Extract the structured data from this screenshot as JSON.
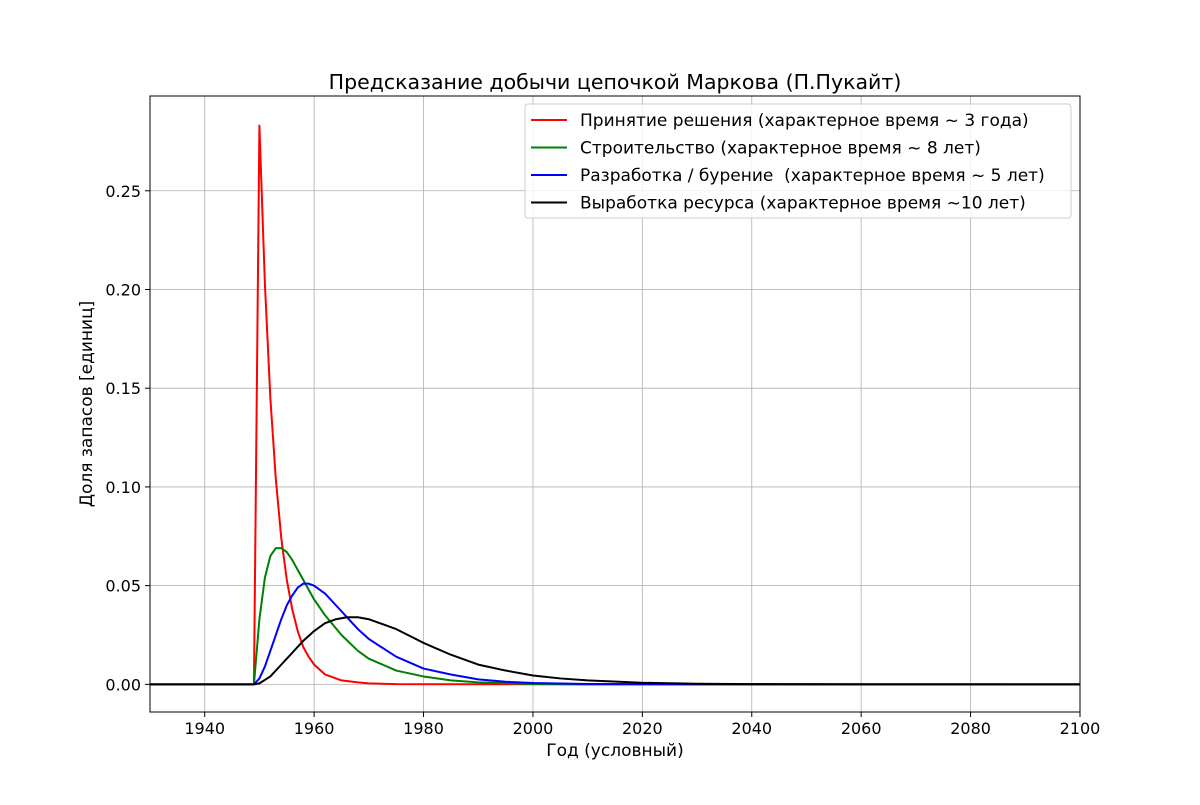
{
  "chart_data": {
    "type": "line",
    "title": "Предсказание добычи цепочкой Маркова (П.Пукайт)",
    "xlabel": "Год (условный)",
    "ylabel": "Доля запасов [единиц]",
    "xlim": [
      1930,
      2100
    ],
    "ylim": [
      -0.014,
      0.298
    ],
    "x_ticks": [
      1940,
      1960,
      1980,
      2000,
      2020,
      2040,
      2060,
      2080,
      2100
    ],
    "x_tick_labels": [
      "1940",
      "1960",
      "1980",
      "2000",
      "2020",
      "2040",
      "2060",
      "2080",
      "2100"
    ],
    "y_ticks": [
      0.0,
      0.05,
      0.1,
      0.15,
      0.2,
      0.25
    ],
    "y_tick_labels": [
      "0.00",
      "0.05",
      "0.10",
      "0.15",
      "0.20",
      "0.25"
    ],
    "grid": true,
    "legend_position": "top-right",
    "series": [
      {
        "name": "Принятие решения (характерное время ~ 3 года)",
        "color": "#ff0000",
        "x": [
          1930,
          1945,
          1949,
          1950,
          1951,
          1952,
          1953,
          1954,
          1955,
          1956,
          1957,
          1958,
          1959,
          1960,
          1962,
          1965,
          1968,
          1970,
          1975,
          2100
        ],
        "y": [
          0,
          0,
          0,
          0.283,
          0.203,
          0.145,
          0.104,
          0.074,
          0.053,
          0.038,
          0.027,
          0.019,
          0.014,
          0.01,
          0.005,
          0.002,
          0.001,
          0.0005,
          0.0001,
          0
        ]
      },
      {
        "name": "Строительство (характерное время ~ 8 лет)",
        "color": "#008000",
        "x": [
          1930,
          1949,
          1950,
          1951,
          1952,
          1953,
          1954,
          1955,
          1956,
          1957,
          1958,
          1959,
          1960,
          1962,
          1965,
          1968,
          1970,
          1975,
          1980,
          1985,
          1990,
          2000,
          2010,
          2100
        ],
        "y": [
          0,
          0,
          0.033,
          0.054,
          0.065,
          0.069,
          0.069,
          0.067,
          0.063,
          0.058,
          0.053,
          0.048,
          0.043,
          0.035,
          0.025,
          0.017,
          0.013,
          0.007,
          0.004,
          0.002,
          0.001,
          0.0002,
          0,
          0
        ]
      },
      {
        "name": "Разработка / бурение  (характерное время ~ 5 лет)",
        "color": "#0000ff",
        "x": [
          1930,
          1949,
          1950,
          1951,
          1952,
          1953,
          1954,
          1955,
          1956,
          1957,
          1958,
          1959,
          1960,
          1962,
          1964,
          1966,
          1968,
          1970,
          1975,
          1980,
          1985,
          1990,
          1995,
          2000,
          2010,
          2020,
          2030,
          2100
        ],
        "y": [
          0,
          0,
          0.003,
          0.009,
          0.017,
          0.025,
          0.033,
          0.04,
          0.045,
          0.049,
          0.051,
          0.051,
          0.05,
          0.046,
          0.04,
          0.034,
          0.028,
          0.023,
          0.014,
          0.008,
          0.005,
          0.0025,
          0.0013,
          0.0007,
          0.0002,
          0.0001,
          0,
          0
        ]
      },
      {
        "name": "Выработка ресурса (характерное время ~10 лет)",
        "color": "#000000",
        "x": [
          1930,
          1949,
          1950,
          1952,
          1954,
          1956,
          1958,
          1960,
          1962,
          1964,
          1966,
          1967,
          1968,
          1970,
          1972,
          1975,
          1980,
          1985,
          1990,
          1995,
          2000,
          2005,
          2010,
          2020,
          2030,
          2040,
          2050,
          2060,
          2100
        ],
        "y": [
          0,
          0,
          0.0005,
          0.004,
          0.01,
          0.016,
          0.022,
          0.027,
          0.031,
          0.033,
          0.034,
          0.034,
          0.034,
          0.033,
          0.031,
          0.028,
          0.021,
          0.015,
          0.01,
          0.007,
          0.0045,
          0.003,
          0.002,
          0.0008,
          0.0003,
          0.0001,
          5e-05,
          0,
          0
        ]
      }
    ]
  }
}
